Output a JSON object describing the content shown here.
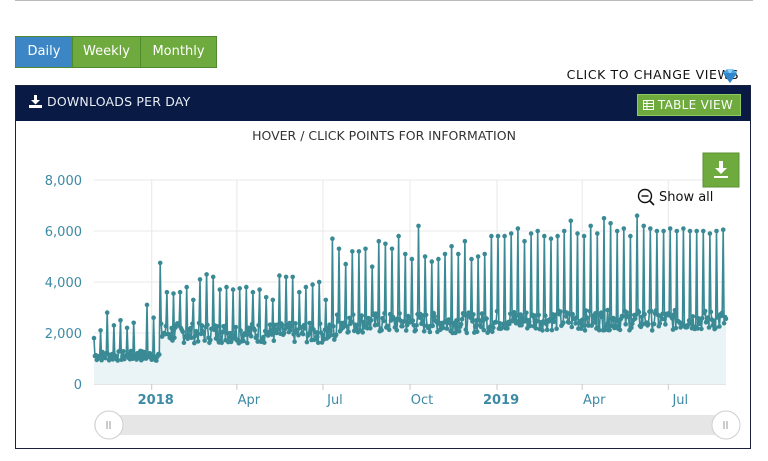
{
  "period_buttons": {
    "daily": "Daily",
    "weekly": "Weekly",
    "monthly": "Monthly",
    "selected": "Daily"
  },
  "hint_text": "CLICK TO CHANGE VIEWS",
  "panel": {
    "title": "DOWNLOADS PER DAY",
    "table_view_label": "TABLE VIEW",
    "header_color": "#091a44",
    "accent_green": "#6eaa3d"
  },
  "icons": {
    "download": "download-icon",
    "hint": "gem-icon",
    "table": "grid-icon",
    "export": "download-icon",
    "zoom": "zoom-out-icon"
  },
  "chart": {
    "subtitle": "HOVER / CLICK POINTS FOR INFORMATION",
    "show_all_label": "Show all",
    "y_ticks": [
      "0",
      "2,000",
      "4,000",
      "6,000",
      "8,000"
    ],
    "x_ticks": [
      "2018",
      "Apr",
      "Jul",
      "Oct",
      "2019",
      "Apr",
      "Jul"
    ],
    "series_color": "#3a8a95",
    "fill_color": "#eaf3f5"
  },
  "chart_data": {
    "type": "line",
    "title": "HOVER / CLICK POINTS FOR INFORMATION",
    "xlabel": "",
    "ylabel": "",
    "ylim": [
      0,
      8000
    ],
    "xrange": [
      "2017-11-01",
      "2019-08-31"
    ],
    "grid": true,
    "description_of_series": "daily downloads; weekday spikes with lower weekend baseline",
    "spike_dates": [
      "2017-11-01",
      "2017-11-08",
      "2017-11-15",
      "2017-11-22",
      "2017-11-29",
      "2017-12-06",
      "2017-12-13",
      "2017-12-20",
      "2017-12-27",
      "2018-01-03",
      "2018-01-10",
      "2018-01-17",
      "2018-01-24",
      "2018-01-31",
      "2018-02-07",
      "2018-02-14",
      "2018-02-21",
      "2018-02-28",
      "2018-03-07",
      "2018-03-14",
      "2018-03-21",
      "2018-03-28",
      "2018-04-04",
      "2018-04-11",
      "2018-04-18",
      "2018-04-25",
      "2018-05-02",
      "2018-05-09",
      "2018-05-16",
      "2018-05-23",
      "2018-05-30",
      "2018-06-06",
      "2018-06-13",
      "2018-06-20",
      "2018-06-27",
      "2018-07-04",
      "2018-07-11",
      "2018-07-18",
      "2018-07-25",
      "2018-08-01",
      "2018-08-08",
      "2018-08-15",
      "2018-08-22",
      "2018-08-29",
      "2018-09-05",
      "2018-09-12",
      "2018-09-19",
      "2018-09-26",
      "2018-10-03",
      "2018-10-10",
      "2018-10-17",
      "2018-10-24",
      "2018-10-31",
      "2018-11-07",
      "2018-11-14",
      "2018-11-21",
      "2018-11-28",
      "2018-12-05",
      "2018-12-12",
      "2018-12-19",
      "2018-12-26",
      "2019-01-02",
      "2019-01-09",
      "2019-01-16",
      "2019-01-23",
      "2019-01-30",
      "2019-02-06",
      "2019-02-13",
      "2019-02-20",
      "2019-02-27",
      "2019-03-06",
      "2019-03-13",
      "2019-03-20",
      "2019-03-27",
      "2019-04-03",
      "2019-04-10",
      "2019-04-17",
      "2019-04-24",
      "2019-05-01",
      "2019-05-08",
      "2019-05-15",
      "2019-05-22",
      "2019-05-29",
      "2019-06-05",
      "2019-06-12",
      "2019-06-19",
      "2019-06-26",
      "2019-07-03",
      "2019-07-10",
      "2019-07-17",
      "2019-07-24",
      "2019-07-31",
      "2019-08-07",
      "2019-08-14",
      "2019-08-21",
      "2019-08-28"
    ],
    "spike_values": [
      1800,
      2100,
      2800,
      2300,
      2500,
      2200,
      2400,
      1300,
      3100,
      2600,
      4750,
      3600,
      3550,
      3600,
      3800,
      3300,
      4100,
      4300,
      4200,
      3700,
      3800,
      3700,
      3750,
      3800,
      3600,
      3700,
      3400,
      3300,
      4250,
      4200,
      4200,
      3600,
      3800,
      3900,
      4000,
      3300,
      5700,
      5300,
      4700,
      5200,
      5200,
      5300,
      4600,
      5600,
      5500,
      5300,
      5800,
      5100,
      4900,
      6200,
      5000,
      4800,
      4900,
      5100,
      5400,
      5100,
      5600,
      4900,
      5000,
      5100,
      5800,
      5800,
      5800,
      5900,
      6100,
      5600,
      5900,
      6000,
      5800,
      5700,
      5800,
      6000,
      6400,
      5900,
      5800,
      6200,
      5900,
      6500,
      6300,
      6000,
      6100,
      5800,
      6600,
      6200,
      6100,
      6000,
      6000,
      6100,
      6000,
      6100,
      6000,
      6000,
      6000,
      5900,
      6000,
      6050
    ],
    "baseline_segments": [
      {
        "from": "2017-11-01",
        "to": "2018-01-10",
        "low": 900,
        "high": 1300
      },
      {
        "from": "2018-01-10",
        "to": "2018-07-15",
        "low": 1600,
        "high": 2400
      },
      {
        "from": "2018-07-15",
        "to": "2018-12-31",
        "low": 2000,
        "high": 2800
      },
      {
        "from": "2019-01-01",
        "to": "2019-08-31",
        "low": 2100,
        "high": 2900
      }
    ],
    "navigator_present": true
  }
}
